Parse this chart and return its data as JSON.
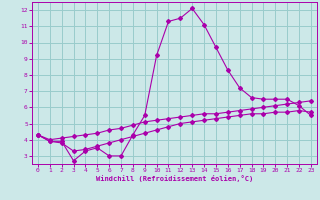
{
  "background_color": "#cce8e8",
  "grid_color": "#99cccc",
  "line_color": "#aa00aa",
  "xlabel": "Windchill (Refroidissement éolien,°C)",
  "xlim": [
    -0.5,
    23.5
  ],
  "ylim": [
    2.5,
    12.5
  ],
  "yticks": [
    3,
    4,
    5,
    6,
    7,
    8,
    9,
    10,
    11,
    12
  ],
  "xticks": [
    0,
    1,
    2,
    3,
    4,
    5,
    6,
    7,
    8,
    9,
    10,
    11,
    12,
    13,
    14,
    15,
    16,
    17,
    18,
    19,
    20,
    21,
    22,
    23
  ],
  "line1_x": [
    0,
    1,
    2,
    3,
    4,
    5,
    6,
    7,
    8,
    9,
    10,
    11,
    12,
    13,
    14,
    15,
    16,
    17,
    18,
    19,
    20,
    21,
    22,
    23
  ],
  "line1_y": [
    4.3,
    3.9,
    3.9,
    2.7,
    3.3,
    3.5,
    3.0,
    3.0,
    4.3,
    5.5,
    9.2,
    11.3,
    11.5,
    12.1,
    11.1,
    9.7,
    8.3,
    7.2,
    6.6,
    6.5,
    6.5,
    6.5,
    6.1,
    5.5
  ],
  "line2_x": [
    0,
    1,
    2,
    3,
    4,
    5,
    6,
    7,
    8,
    9,
    10,
    11,
    12,
    13,
    14,
    15,
    16,
    17,
    18,
    19,
    20,
    21,
    22,
    23
  ],
  "line2_y": [
    4.3,
    4.0,
    4.1,
    4.2,
    4.3,
    4.4,
    4.6,
    4.7,
    4.9,
    5.1,
    5.2,
    5.3,
    5.4,
    5.5,
    5.6,
    5.6,
    5.7,
    5.8,
    5.9,
    6.0,
    6.1,
    6.2,
    6.3,
    6.4
  ],
  "line3_x": [
    0,
    1,
    2,
    3,
    4,
    5,
    6,
    7,
    8,
    9,
    10,
    11,
    12,
    13,
    14,
    15,
    16,
    17,
    18,
    19,
    20,
    21,
    22,
    23
  ],
  "line3_y": [
    4.3,
    3.9,
    3.8,
    3.3,
    3.4,
    3.6,
    3.8,
    4.0,
    4.2,
    4.4,
    4.6,
    4.8,
    5.0,
    5.1,
    5.2,
    5.3,
    5.4,
    5.5,
    5.6,
    5.6,
    5.7,
    5.7,
    5.8,
    5.7
  ]
}
